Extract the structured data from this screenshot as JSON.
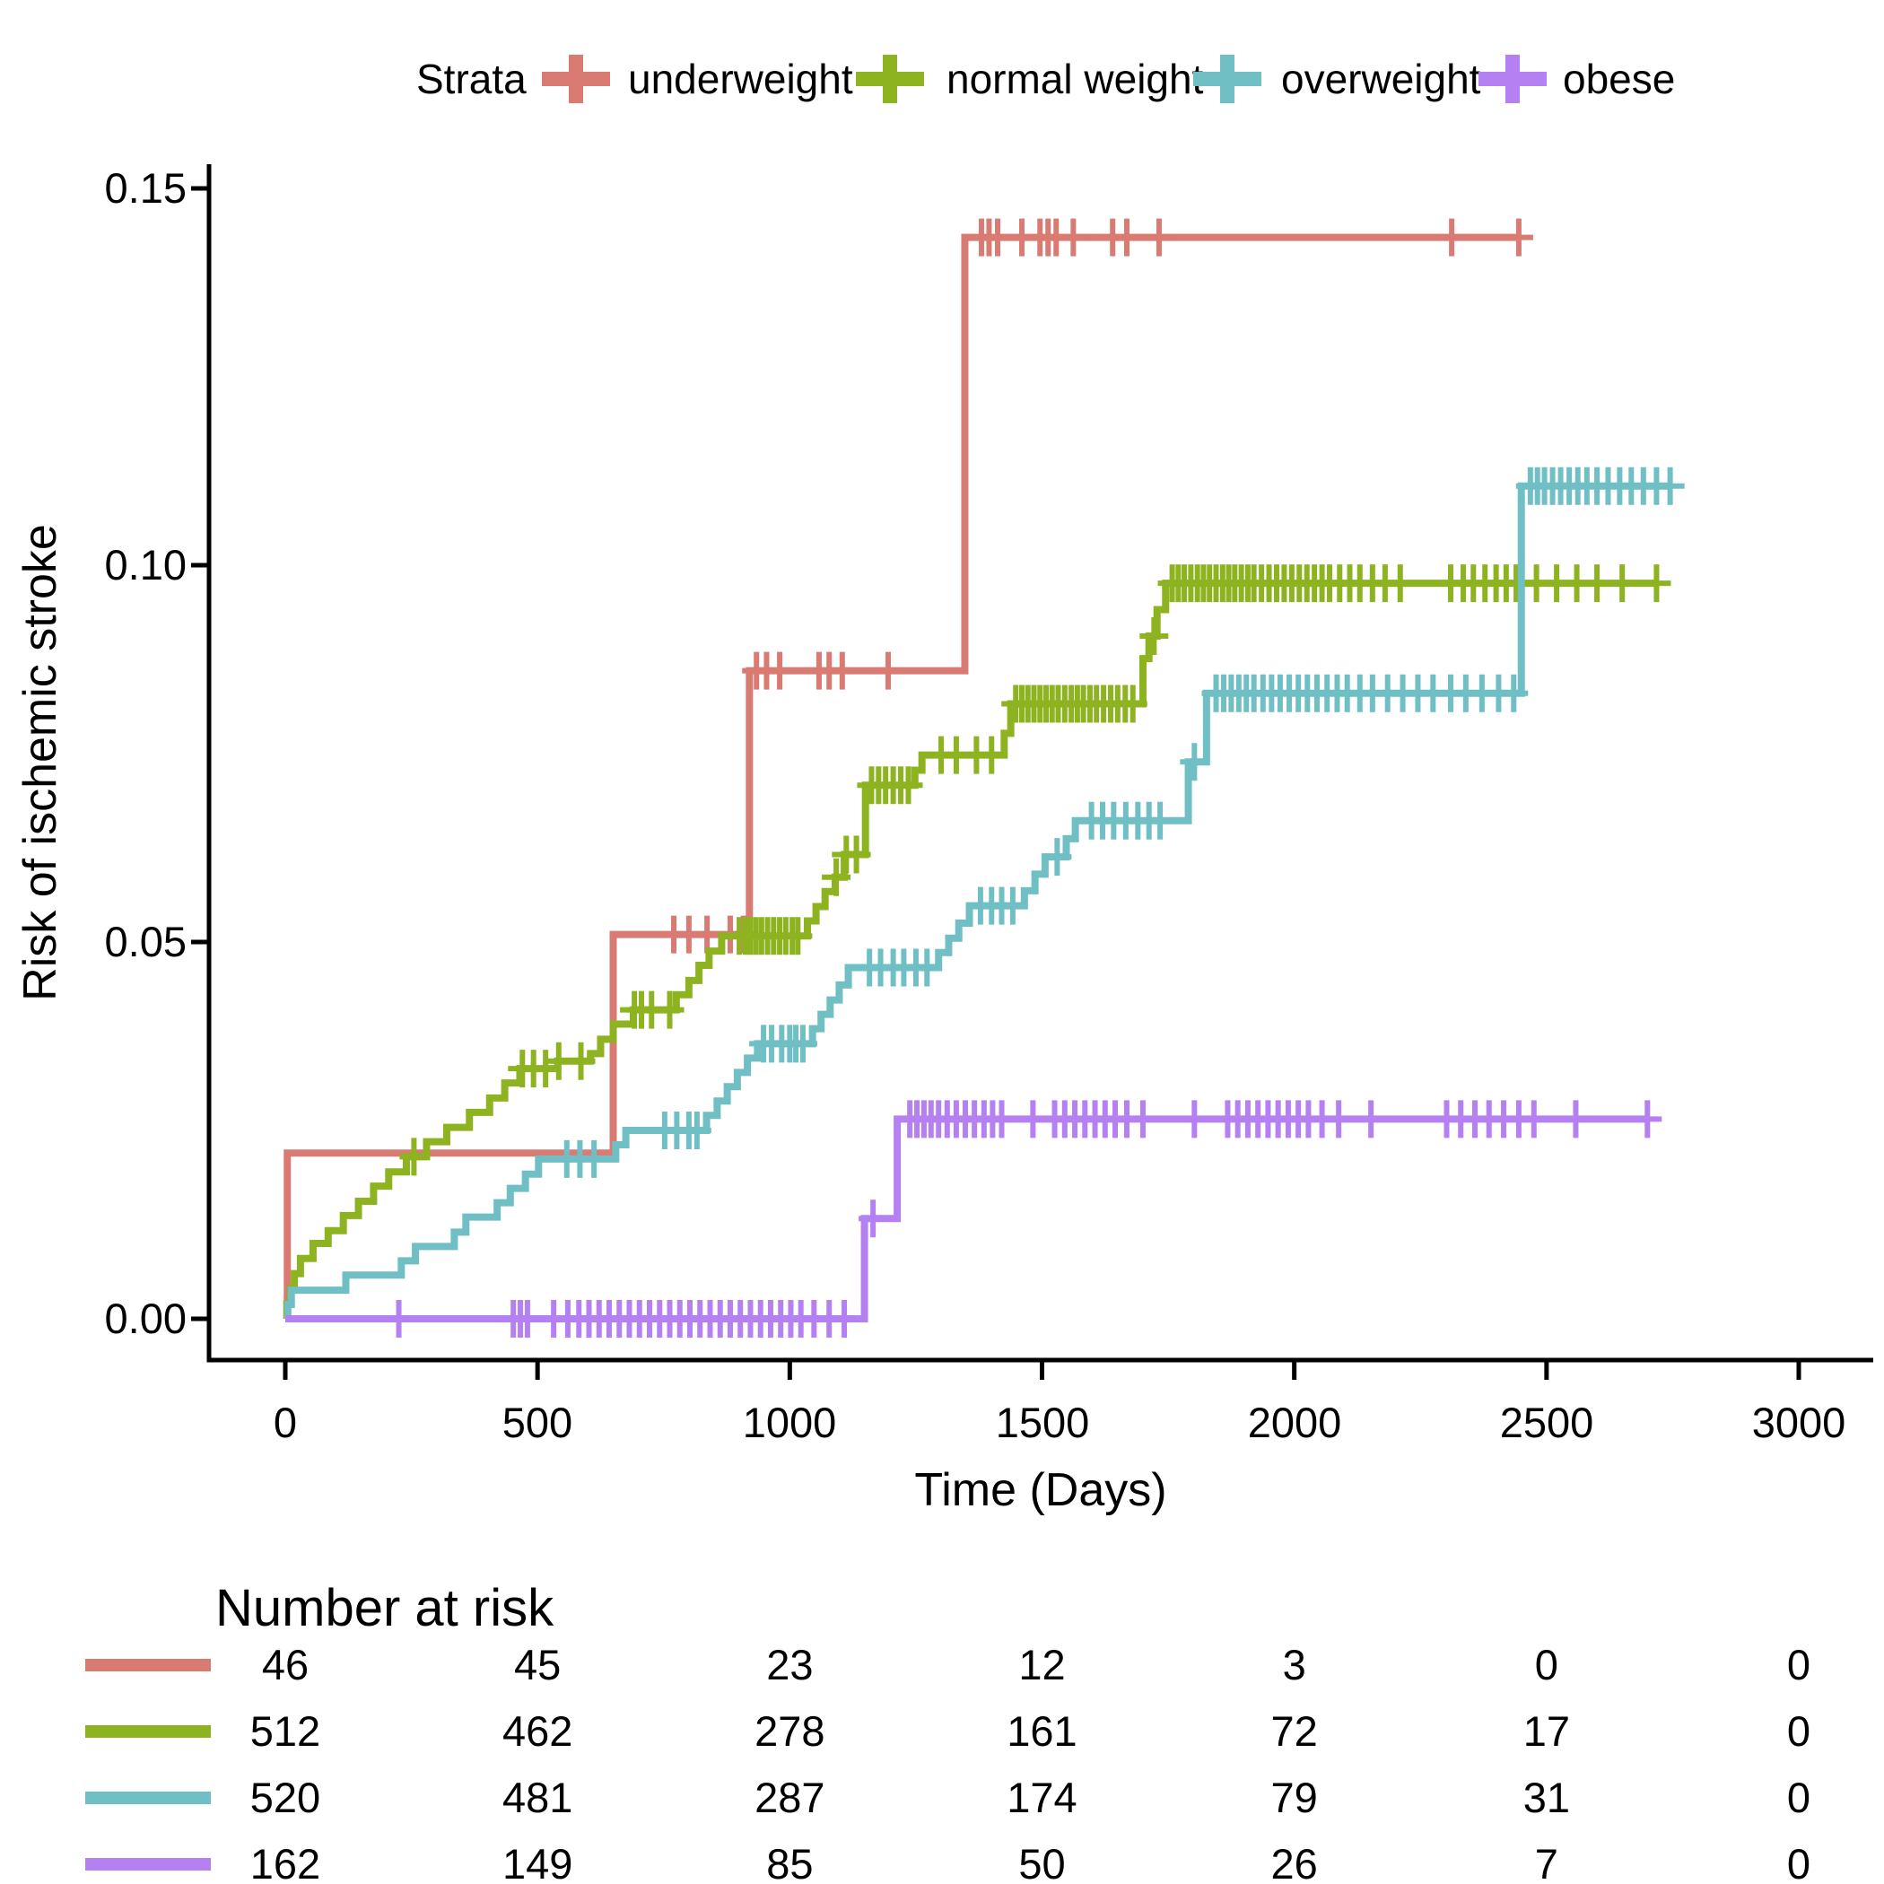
{
  "legend": {
    "title": "Strata",
    "items": [
      "underweight",
      "normal weight",
      "overweight",
      "obese"
    ]
  },
  "axes": {
    "y_label": "Risk of ischemic stroke",
    "x_label": "Time (Days)",
    "y_tick_labels": [
      "0.00",
      "0.05",
      "0.10",
      "0.15"
    ],
    "y_tick_values": [
      0,
      0.05,
      0.1,
      0.15
    ],
    "x_tick_labels": [
      "0",
      "500",
      "1000",
      "1500",
      "2000",
      "2500",
      "3000"
    ],
    "x_tick_values": [
      0,
      500,
      1000,
      1500,
      2000,
      2500,
      3000
    ],
    "x_range": [
      0,
      3000
    ],
    "y_range": [
      0,
      0.15
    ],
    "grid": "off",
    "legend_position": "top"
  },
  "chart_data": {
    "type": "line",
    "subtype": "kaplan-meier-step-cumulative-incidence",
    "xlabel": "Time (Days)",
    "ylabel": "Risk of ischemic stroke",
    "xlim": [
      0,
      3000
    ],
    "ylim": [
      0,
      0.15
    ],
    "series": [
      {
        "name": "underweight",
        "color": "#D97B72",
        "steps": [
          [
            0,
            0
          ],
          [
            4,
            0.022
          ],
          [
            650,
            0.051
          ],
          [
            920,
            0.086
          ],
          [
            1347,
            0.1435
          ]
        ],
        "end_time": 2445,
        "censor_times": [
          770,
          800,
          836,
          882,
          908,
          934,
          954,
          980,
          1058,
          1078,
          1104,
          1195,
          1380,
          1395,
          1412,
          1460,
          1496,
          1512,
          1528,
          1562,
          1640,
          1668,
          1732,
          2312,
          2445
        ]
      },
      {
        "name": "normal weight",
        "color": "#8DB321",
        "steps": [
          [
            0,
            0
          ],
          [
            3,
            0.002
          ],
          [
            10,
            0.004
          ],
          [
            18,
            0.006
          ],
          [
            30,
            0.008
          ],
          [
            55,
            0.01
          ],
          [
            85,
            0.0117
          ],
          [
            115,
            0.0137
          ],
          [
            145,
            0.0156
          ],
          [
            175,
            0.0176
          ],
          [
            205,
            0.0195
          ],
          [
            240,
            0.0215
          ],
          [
            280,
            0.0235
          ],
          [
            320,
            0.0254
          ],
          [
            365,
            0.0274
          ],
          [
            405,
            0.0293
          ],
          [
            435,
            0.0313
          ],
          [
            465,
            0.0332
          ],
          [
            540,
            0.0342
          ],
          [
            605,
            0.0352
          ],
          [
            625,
            0.0371
          ],
          [
            650,
            0.0391
          ],
          [
            690,
            0.041
          ],
          [
            775,
            0.043
          ],
          [
            800,
            0.0449
          ],
          [
            820,
            0.0469
          ],
          [
            840,
            0.0488
          ],
          [
            865,
            0.0508
          ],
          [
            1035,
            0.0528
          ],
          [
            1052,
            0.0547
          ],
          [
            1070,
            0.0567
          ],
          [
            1090,
            0.0586
          ],
          [
            1108,
            0.0616
          ],
          [
            1150,
            0.0708
          ],
          [
            1248,
            0.0728
          ],
          [
            1262,
            0.0748
          ],
          [
            1425,
            0.0777
          ],
          [
            1438,
            0.0816
          ],
          [
            1700,
            0.0876
          ],
          [
            1712,
            0.0906
          ],
          [
            1728,
            0.0941
          ],
          [
            1745,
            0.0976
          ]
        ],
        "end_time": 2718,
        "censor_times": [
          255,
          470,
          492,
          516,
          542,
          586,
          692,
          706,
          726,
          762,
          900,
          912,
          922,
          933,
          944,
          956,
          968,
          980,
          992,
          1005,
          1016,
          1092,
          1112,
          1132,
          1162,
          1176,
          1190,
          1205,
          1220,
          1235,
          1300,
          1330,
          1370,
          1400,
          1448,
          1460,
          1472,
          1484,
          1496,
          1508,
          1520,
          1532,
          1545,
          1558,
          1570,
          1582,
          1595,
          1608,
          1622,
          1636,
          1650,
          1665,
          1680,
          1722,
          1758,
          1770,
          1782,
          1795,
          1808,
          1820,
          1832,
          1845,
          1858,
          1870,
          1882,
          1895,
          1908,
          1920,
          1935,
          1950,
          1965,
          1980,
          1995,
          2010,
          2025,
          2040,
          2055,
          2070,
          2090,
          2110,
          2130,
          2155,
          2180,
          2210,
          2310,
          2335,
          2355,
          2378,
          2400,
          2420,
          2440,
          2480,
          2520,
          2560,
          2600,
          2650,
          2718
        ]
      },
      {
        "name": "overweight",
        "color": "#6FBFC4",
        "steps": [
          [
            0,
            0
          ],
          [
            5,
            0.0019
          ],
          [
            12,
            0.0038
          ],
          [
            120,
            0.0058
          ],
          [
            230,
            0.0077
          ],
          [
            258,
            0.0096
          ],
          [
            335,
            0.0115
          ],
          [
            358,
            0.0135
          ],
          [
            420,
            0.0154
          ],
          [
            446,
            0.0173
          ],
          [
            476,
            0.0192
          ],
          [
            502,
            0.0212
          ],
          [
            655,
            0.0231
          ],
          [
            675,
            0.025
          ],
          [
            835,
            0.027
          ],
          [
            856,
            0.0289
          ],
          [
            876,
            0.0308
          ],
          [
            896,
            0.0327
          ],
          [
            916,
            0.0346
          ],
          [
            936,
            0.0365
          ],
          [
            1045,
            0.0385
          ],
          [
            1062,
            0.0404
          ],
          [
            1080,
            0.0423
          ],
          [
            1098,
            0.0443
          ],
          [
            1116,
            0.0466
          ],
          [
            1295,
            0.0486
          ],
          [
            1315,
            0.0505
          ],
          [
            1335,
            0.0525
          ],
          [
            1356,
            0.0548
          ],
          [
            1465,
            0.0568
          ],
          [
            1486,
            0.059
          ],
          [
            1506,
            0.0613
          ],
          [
            1548,
            0.0637
          ],
          [
            1566,
            0.0661
          ],
          [
            1790,
            0.0739
          ],
          [
            1826,
            0.083
          ],
          [
            2450,
            0.1105
          ]
        ],
        "end_time": 2745,
        "censor_times": [
          558,
          584,
          612,
          752,
          776,
          800,
          816,
          948,
          964,
          984,
          1000,
          1012,
          1026,
          1158,
          1180,
          1205,
          1226,
          1250,
          1272,
          1378,
          1400,
          1420,
          1442,
          1530,
          1598,
          1620,
          1642,
          1666,
          1690,
          1712,
          1734,
          1802,
          1845,
          1860,
          1875,
          1890,
          1905,
          1920,
          1938,
          1955,
          1972,
          1990,
          2008,
          2026,
          2045,
          2065,
          2085,
          2105,
          2130,
          2155,
          2185,
          2215,
          2245,
          2275,
          2310,
          2340,
          2372,
          2405,
          2435,
          2468,
          2482,
          2496,
          2512,
          2528,
          2545,
          2562,
          2580,
          2600,
          2622,
          2645,
          2668,
          2692,
          2718,
          2745
        ]
      },
      {
        "name": "obese",
        "color": "#B580F2",
        "steps": [
          [
            0,
            0
          ],
          [
            1148,
            0.0133
          ],
          [
            1213,
            0.0265
          ]
        ],
        "end_time": 2700,
        "censor_times": [
          225,
          452,
          466,
          480,
          532,
          560,
          582,
          602,
          622,
          642,
          662,
          682,
          702,
          722,
          742,
          762,
          782,
          802,
          822,
          842,
          862,
          882,
          902,
          922,
          942,
          962,
          982,
          1002,
          1022,
          1048,
          1078,
          1108,
          1165,
          1238,
          1252,
          1266,
          1280,
          1295,
          1312,
          1330,
          1348,
          1366,
          1385,
          1402,
          1420,
          1482,
          1525,
          1545,
          1565,
          1585,
          1605,
          1625,
          1645,
          1668,
          1700,
          1802,
          1868,
          1888,
          1908,
          1928,
          1948,
          1968,
          1988,
          2008,
          2028,
          2055,
          2088,
          2152,
          2302,
          2330,
          2358,
          2386,
          2415,
          2445,
          2475,
          2558,
          2700
        ]
      }
    ]
  },
  "risk_table": {
    "title": "Number at risk",
    "times": [
      0,
      500,
      1000,
      1500,
      2000,
      2500,
      3000
    ],
    "rows": [
      {
        "name": "underweight",
        "color": "#D97B72",
        "counts": [
          "46",
          "45",
          "23",
          "12",
          "3",
          "0",
          "0"
        ]
      },
      {
        "name": "normal weight",
        "color": "#8DB321",
        "counts": [
          "512",
          "462",
          "278",
          "161",
          "72",
          "17",
          "0"
        ]
      },
      {
        "name": "overweight",
        "color": "#6FBFC4",
        "counts": [
          "520",
          "481",
          "287",
          "174",
          "79",
          "31",
          "0"
        ]
      },
      {
        "name": "obese",
        "color": "#B580F2",
        "counts": [
          "162",
          "149",
          "85",
          "50",
          "26",
          "7",
          "0"
        ]
      }
    ]
  }
}
